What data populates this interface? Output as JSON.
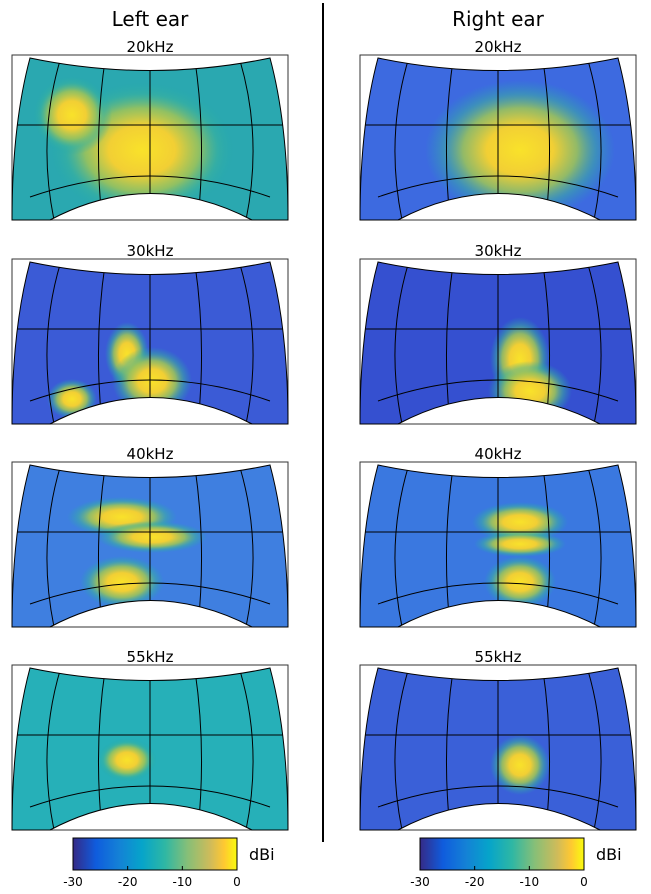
{
  "columns": [
    {
      "title": "Left ear",
      "panels": [
        "20kHz",
        "30kHz",
        "40kHz",
        "55kHz"
      ],
      "colorbar": {
        "label": "dBi",
        "range": [
          -30,
          0
        ],
        "ticks": [
          -30,
          -20,
          -10,
          0
        ]
      }
    },
    {
      "title": "Right ear",
      "panels": [
        "20kHz",
        "30kHz",
        "40kHz",
        "55kHz"
      ],
      "colorbar": {
        "label": "dBi",
        "range": [
          -30,
          0
        ],
        "ticks": [
          -30,
          -20,
          -10,
          0
        ]
      }
    }
  ]
}
